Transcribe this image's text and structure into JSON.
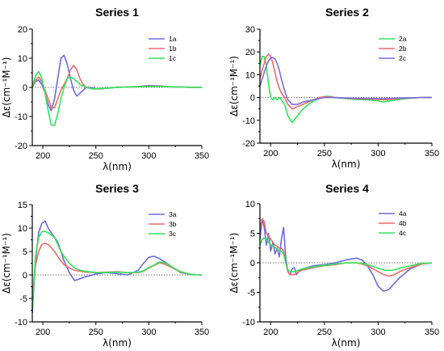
{
  "chart_data": [
    {
      "type": "line",
      "title": "Series 1",
      "xlabel": "λ(nm)",
      "ylabel": "Δε(cm⁻¹M⁻¹)",
      "xlim": [
        190,
        350
      ],
      "ylim": [
        -20,
        20
      ],
      "xticks": [
        200,
        250,
        300,
        350
      ],
      "yticks": [
        -20,
        -10,
        0,
        10,
        20
      ],
      "zero_line": "dotted",
      "legend": "top-right",
      "series": [
        {
          "name": "1a",
          "color": "#6b6bdc",
          "x": [
            190,
            193,
            196,
            199,
            202,
            205,
            208,
            211,
            214,
            217,
            220,
            223,
            226,
            229,
            232,
            235,
            238,
            241,
            244,
            247,
            250,
            255,
            260,
            270,
            280,
            290,
            300,
            310,
            320,
            330,
            340,
            350
          ],
          "y": [
            0,
            2,
            2.5,
            1,
            -2,
            -6,
            -8,
            -4,
            3,
            10,
            11,
            8,
            3,
            -1,
            -3,
            -2,
            -1,
            0,
            0,
            -0.2,
            -0.5,
            -0.5,
            -0.3,
            0,
            0.1,
            0.3,
            0.6,
            0.5,
            0.2,
            0.1,
            0,
            0
          ]
        },
        {
          "name": "1b",
          "color": "#f06a6a",
          "x": [
            190,
            193,
            196,
            199,
            202,
            205,
            208,
            211,
            214,
            217,
            220,
            223,
            226,
            229,
            232,
            235,
            238,
            241,
            244,
            247,
            250,
            255,
            260,
            270,
            280,
            290,
            300,
            310,
            320,
            330,
            340,
            350
          ],
          "y": [
            0,
            2.5,
            3.5,
            2,
            -1,
            -4,
            -7,
            -7,
            -4,
            -1,
            1,
            3,
            6,
            7.5,
            6,
            3,
            1,
            0,
            -0.3,
            -0.5,
            -0.5,
            -0.5,
            -0.3,
            0,
            0.1,
            0.2,
            0.4,
            0.4,
            0.2,
            0.1,
            0,
            0
          ]
        },
        {
          "name": "1c",
          "color": "#2ee65a",
          "x": [
            190,
            193,
            196,
            199,
            202,
            205,
            208,
            211,
            214,
            217,
            220,
            223,
            226,
            229,
            232,
            235,
            238,
            241,
            244,
            247,
            250,
            255,
            260,
            270,
            280,
            290,
            300,
            310,
            320,
            330,
            340,
            350
          ],
          "y": [
            0,
            4,
            5.5,
            3,
            -2,
            -8,
            -13,
            -13,
            -9,
            -4,
            0,
            3,
            3.5,
            3,
            2,
            1,
            0.5,
            0,
            -0.3,
            -0.5,
            -0.5,
            -0.4,
            -0.3,
            0,
            0.1,
            0.2,
            0.3,
            0.3,
            0.2,
            0.1,
            0,
            0
          ]
        }
      ]
    },
    {
      "type": "line",
      "title": "Series 2",
      "xlabel": "λ(nm)",
      "ylabel": "Δε(cm⁻¹M⁻¹)",
      "xlim": [
        190,
        350
      ],
      "ylim": [
        -20,
        30
      ],
      "xticks": [
        200,
        250,
        300,
        350
      ],
      "yticks": [
        -20,
        -10,
        0,
        10,
        20,
        30
      ],
      "zero_line": "dotted",
      "legend": "top-right",
      "series": [
        {
          "name": "2a",
          "color": "#2ee65a",
          "x": [
            190,
            192,
            194,
            196,
            198,
            200,
            202,
            204,
            206,
            208,
            210,
            213,
            216,
            220,
            225,
            230,
            235,
            240,
            245,
            250,
            255,
            260,
            270,
            280,
            290,
            300,
            305,
            310,
            320,
            330,
            340,
            350
          ],
          "y": [
            14,
            18,
            18,
            14,
            6,
            0,
            -1,
            0,
            -1,
            0,
            -1,
            -3,
            -8,
            -11,
            -8,
            -5,
            -3,
            -1.5,
            -0.5,
            0.5,
            0.5,
            0,
            -0.5,
            -0.8,
            -1,
            -1.5,
            -2,
            -1.5,
            -0.8,
            -0.3,
            0,
            0
          ]
        },
        {
          "name": "2b",
          "color": "#f06a6a",
          "x": [
            190,
            192,
            194,
            196,
            198,
            200,
            202,
            204,
            206,
            208,
            210,
            213,
            216,
            220,
            225,
            230,
            235,
            240,
            245,
            250,
            255,
            260,
            270,
            280,
            290,
            300,
            305,
            310,
            320,
            330,
            340,
            350
          ],
          "y": [
            8,
            12,
            15,
            18,
            19,
            18,
            15,
            11,
            7,
            4,
            2,
            0,
            -3,
            -5,
            -4,
            -3,
            -2,
            -1,
            0,
            0.3,
            0.3,
            0,
            -0.3,
            -0.5,
            -0.6,
            -0.8,
            -1,
            -0.8,
            -0.4,
            -0.2,
            0,
            0
          ]
        },
        {
          "name": "2c",
          "color": "#7b6be0",
          "x": [
            190,
            192,
            194,
            196,
            198,
            200,
            202,
            204,
            206,
            208,
            210,
            213,
            216,
            220,
            225,
            230,
            235,
            240,
            245,
            250,
            255,
            260,
            270,
            280,
            290,
            300,
            305,
            310,
            320,
            330,
            340,
            350
          ],
          "y": [
            5,
            8,
            11,
            14,
            16,
            17.5,
            17.5,
            17,
            15,
            12,
            8,
            3,
            -1,
            -3,
            -3,
            -2,
            -1.5,
            -1,
            -0.5,
            0,
            0,
            0,
            -0.2,
            -0.3,
            -0.4,
            -0.5,
            -0.5,
            -0.4,
            -0.2,
            -0.1,
            0,
            0
          ]
        }
      ]
    },
    {
      "type": "line",
      "title": "Series 3",
      "xlabel": "λ(nm)",
      "ylabel": "Δε(cm⁻¹M⁻¹)",
      "xlim": [
        190,
        350
      ],
      "ylim": [
        -10,
        15
      ],
      "xticks": [
        200,
        250,
        300,
        350
      ],
      "yticks": [
        -10,
        -5,
        0,
        5,
        10,
        15
      ],
      "zero_line": "dotted",
      "legend": "top-right",
      "series": [
        {
          "name": "3a",
          "color": "#6b6bdc",
          "x": [
            190,
            193,
            196,
            199,
            202,
            205,
            208,
            211,
            214,
            217,
            220,
            225,
            230,
            235,
            240,
            250,
            260,
            270,
            280,
            290,
            295,
            300,
            305,
            310,
            315,
            320,
            325,
            330,
            340,
            350
          ],
          "y": [
            -8,
            3,
            9,
            11,
            11.5,
            10,
            9,
            8,
            7,
            5,
            3,
            0.5,
            -1.2,
            -0.8,
            -0.4,
            0.2,
            0.5,
            0.3,
            0,
            1,
            2.5,
            3.8,
            4,
            3.5,
            2.8,
            2,
            1.2,
            0.5,
            0.1,
            0
          ]
        },
        {
          "name": "3b",
          "color": "#f06a6a",
          "x": [
            190,
            193,
            196,
            199,
            202,
            205,
            208,
            211,
            214,
            217,
            220,
            225,
            230,
            235,
            240,
            250,
            260,
            270,
            280,
            290,
            295,
            300,
            305,
            310,
            315,
            320,
            325,
            330,
            340,
            350
          ],
          "y": [
            -5,
            2,
            5,
            6.5,
            6.8,
            6.5,
            5.8,
            5,
            4,
            3,
            2.2,
            1.5,
            1,
            0.8,
            0.6,
            0.5,
            0.6,
            0.7,
            0.5,
            0.5,
            0.8,
            1.5,
            2,
            2.6,
            2.3,
            1.8,
            1.2,
            0.6,
            0.1,
            0
          ]
        },
        {
          "name": "3c",
          "color": "#2ee65a",
          "x": [
            190,
            193,
            196,
            199,
            202,
            205,
            208,
            211,
            214,
            217,
            220,
            225,
            230,
            235,
            240,
            250,
            260,
            270,
            280,
            290,
            295,
            300,
            305,
            310,
            315,
            320,
            325,
            330,
            340,
            350
          ],
          "y": [
            -7,
            4,
            8,
            9.2,
            9.3,
            9,
            8.5,
            8,
            6.5,
            5,
            4,
            2.5,
            1.5,
            1,
            0.8,
            0.5,
            0.5,
            0.6,
            0.5,
            0.6,
            0.9,
            1.6,
            2.1,
            2.8,
            2.6,
            2,
            1.3,
            0.7,
            0.1,
            0
          ]
        }
      ]
    },
    {
      "type": "line",
      "title": "Series 4",
      "xlabel": "λ(nm)",
      "ylabel": "Δε(cm⁻¹M⁻¹)",
      "xlim": [
        190,
        350
      ],
      "ylim": [
        -10,
        10
      ],
      "xticks": [
        200,
        250,
        300,
        350
      ],
      "yticks": [
        -10,
        -5,
        0,
        5,
        10
      ],
      "zero_line": "dotted",
      "legend": "top-right",
      "series": [
        {
          "name": "4a",
          "color": "#6b6bdc",
          "x": [
            190,
            192,
            194,
            196,
            198,
            200,
            202,
            204,
            206,
            208,
            210,
            212,
            214,
            216,
            218,
            220,
            222,
            224,
            226,
            230,
            240,
            250,
            260,
            270,
            280,
            285,
            290,
            295,
            300,
            305,
            310,
            315,
            320,
            330,
            340,
            350
          ],
          "y": [
            4,
            7.5,
            6,
            3,
            5,
            2,
            3.5,
            1.5,
            2.5,
            1,
            4,
            6,
            1,
            -1.5,
            -2,
            -1,
            -0.8,
            -2,
            -1.5,
            -1,
            -0.5,
            -0.3,
            0,
            0.5,
            0.8,
            0.5,
            -0.5,
            -2,
            -4,
            -4.8,
            -4.5,
            -3.5,
            -2.5,
            -1,
            -0.2,
            0
          ]
        },
        {
          "name": "4b",
          "color": "#f06a6a",
          "x": [
            190,
            192,
            194,
            196,
            198,
            200,
            202,
            204,
            206,
            208,
            210,
            212,
            214,
            216,
            218,
            220,
            222,
            224,
            226,
            230,
            240,
            250,
            260,
            270,
            280,
            285,
            290,
            295,
            300,
            305,
            310,
            315,
            320,
            330,
            340,
            350
          ],
          "y": [
            6,
            7.5,
            7,
            5,
            4.5,
            4,
            3.5,
            3,
            2.8,
            2.5,
            2.5,
            2,
            0,
            -1.5,
            -2,
            -2,
            -2,
            -1.8,
            -1.5,
            -1.2,
            -0.8,
            -0.5,
            -0.3,
            0,
            0,
            -0.2,
            -0.5,
            -1,
            -1.5,
            -2,
            -2.2,
            -2,
            -1.5,
            -0.8,
            -0.2,
            0
          ]
        },
        {
          "name": "4c",
          "color": "#2ee65a",
          "x": [
            190,
            192,
            194,
            196,
            198,
            200,
            202,
            204,
            206,
            208,
            210,
            212,
            214,
            216,
            218,
            220,
            222,
            224,
            226,
            230,
            240,
            250,
            260,
            270,
            280,
            285,
            290,
            295,
            300,
            305,
            310,
            315,
            320,
            330,
            340,
            350
          ],
          "y": [
            3,
            4,
            4.2,
            4,
            3.5,
            3,
            3,
            2.6,
            2.3,
            2.1,
            2,
            1.5,
            0,
            -1.2,
            -1.5,
            -1.5,
            -1.5,
            -1.4,
            -1.2,
            -1,
            -0.7,
            -0.4,
            -0.2,
            0,
            0,
            -0.1,
            -0.3,
            -0.6,
            -0.9,
            -1.2,
            -1.3,
            -1.2,
            -0.9,
            -0.5,
            -0.1,
            0
          ]
        }
      ]
    }
  ]
}
